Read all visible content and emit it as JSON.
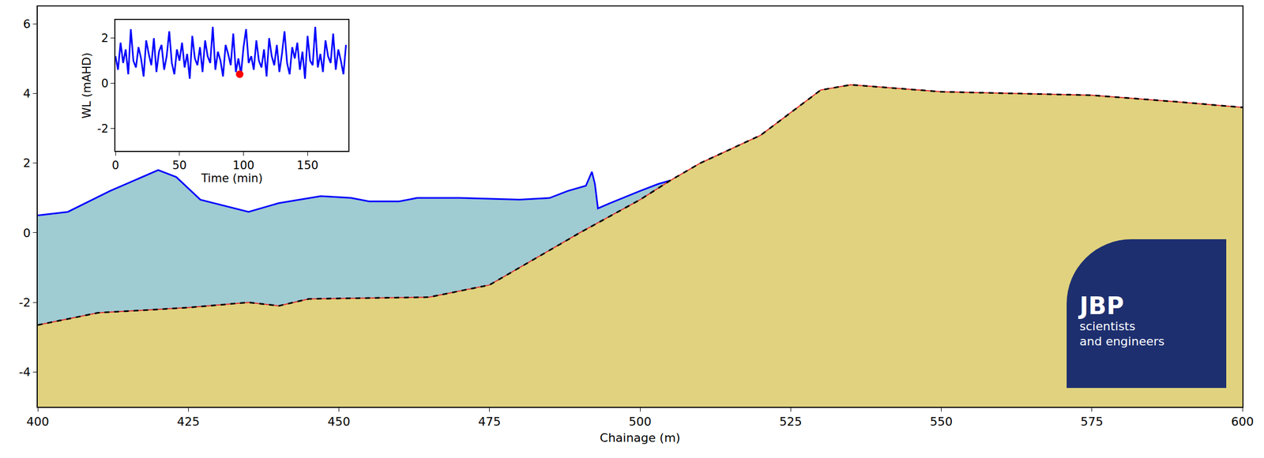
{
  "chart_data": [
    {
      "type": "area",
      "x_label": "Chainage (m)",
      "xlim": [
        400,
        600
      ],
      "xticks": [
        400,
        425,
        450,
        475,
        500,
        525,
        550,
        575,
        600
      ],
      "ylim": [
        -5,
        6.5
      ],
      "yticks": [
        -4,
        -2,
        0,
        2,
        4,
        6
      ],
      "grid": false,
      "tick_labels": true,
      "series": [
        {
          "x": [
            400,
            410,
            425,
            435,
            440,
            445,
            465,
            475,
            490,
            500,
            505,
            510,
            520,
            530,
            535,
            550,
            575,
            590,
            600
          ],
          "values": [
            -2.65,
            -2.3,
            -2.15,
            -2.0,
            -2.1,
            -1.9,
            -1.85,
            -1.5,
            0.0,
            0.95,
            1.5,
            2.0,
            2.8,
            4.1,
            4.25,
            4.05,
            3.95,
            3.75,
            3.6
          ],
          "color": "#000000",
          "line_style": "dashed"
        },
        {
          "x": [
            400,
            405,
            412,
            420,
            423,
            427,
            435,
            440,
            447,
            452,
            455,
            460,
            463,
            470,
            480,
            485,
            488,
            491,
            492,
            492.5,
            493,
            495,
            500,
            503,
            505
          ],
          "values": [
            0.5,
            0.6,
            1.2,
            1.8,
            1.6,
            0.95,
            0.6,
            0.85,
            1.05,
            1.0,
            0.9,
            0.9,
            1.0,
            1.0,
            0.95,
            1.0,
            1.2,
            1.35,
            1.75,
            1.4,
            0.7,
            0.85,
            1.2,
            1.4,
            1.5
          ],
          "color": "#0000ff",
          "line_style": "solid"
        }
      ]
    },
    {
      "type": "line",
      "x_label": "Time (min)",
      "y_label": "WL (mAHD)",
      "xlim": [
        0,
        182
      ],
      "xticks": [
        0,
        50,
        100,
        150
      ],
      "ylim": [
        -3,
        2.8
      ],
      "yticks": [
        -2,
        0,
        2
      ],
      "grid": false,
      "series": [
        {
          "x": [
            0,
            2,
            4,
            6,
            8,
            10,
            12,
            14,
            16,
            18,
            20,
            22,
            24,
            26,
            28,
            30,
            32,
            34,
            36,
            38,
            40,
            42,
            44,
            46,
            48,
            50,
            52,
            54,
            56,
            58,
            60,
            62,
            64,
            66,
            68,
            70,
            72,
            74,
            76,
            78,
            80,
            82,
            84,
            86,
            88,
            90,
            92,
            94,
            96,
            98,
            100,
            102,
            104,
            106,
            108,
            110,
            112,
            114,
            116,
            118,
            120,
            122,
            124,
            126,
            128,
            130,
            132,
            134,
            136,
            138,
            140,
            142,
            144,
            146,
            148,
            150,
            152,
            154,
            156,
            158,
            160,
            162,
            164,
            166,
            168,
            170,
            172,
            174,
            176,
            178,
            180
          ],
          "values": [
            1.2,
            0.6,
            1.8,
            0.9,
            1.5,
            0.4,
            2.4,
            1.0,
            0.7,
            1.6,
            1.1,
            0.3,
            1.9,
            1.3,
            0.8,
            2.0,
            0.5,
            1.4,
            1.7,
            0.6,
            1.2,
            2.3,
            0.9,
            0.4,
            1.5,
            1.0,
            1.8,
            0.7,
            1.3,
            0.2,
            2.1,
            1.1,
            0.8,
            1.6,
            0.5,
            1.9,
            1.2,
            0.9,
            2.5,
            0.6,
            1.4,
            1.0,
            0.3,
            1.7,
            1.3,
            0.8,
            2.2,
            0.5,
            1.1,
            0.4,
            1.6,
            2.4,
            0.9,
            1.2,
            0.6,
            1.9,
            1.0,
            0.7,
            1.5,
            0.3,
            2.0,
            1.2,
            0.8,
            1.7,
            0.5,
            1.3,
            2.3,
            0.9,
            0.4,
            1.6,
            1.1,
            1.8,
            0.6,
            1.4,
            0.2,
            2.1,
            1.0,
            0.8,
            2.5,
            0.7,
            1.3,
            0.5,
            1.9,
            1.2,
            0.9,
            2.2,
            0.6,
            1.5,
            1.0,
            0.4,
            1.7
          ],
          "color": "#0000ff"
        }
      ],
      "highlight": {
        "x": 97,
        "y": 0.4,
        "color": "#ff0000"
      }
    }
  ],
  "logo": {
    "title": "JBP",
    "lines": [
      "scientists",
      "and engineers"
    ]
  }
}
